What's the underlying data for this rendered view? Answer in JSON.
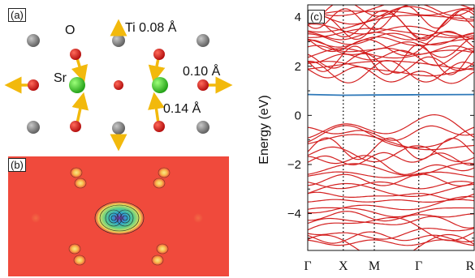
{
  "panel_a": {
    "label": "(a)",
    "atom_labels": {
      "o": "O",
      "sr": "Sr"
    },
    "displacements": {
      "ti": "Ti 0.08 Å",
      "o_horizontal": "0.10 Å",
      "o_vertical": "0.14 Å"
    },
    "colors": {
      "sr": "#33cc1a",
      "o": "#dd1111",
      "ti": "#8a8a8a",
      "arrow": "#f2b90c"
    }
  },
  "panel_b": {
    "label": "(b)",
    "colors": {
      "background": "#f04a3c",
      "lobe": "#f6ce52",
      "center": "#3fb0a6"
    }
  },
  "panel_c": {
    "label": "(c)",
    "ylabel": "Energy (eV)",
    "yticks": [
      "4",
      "2",
      "0",
      "−2",
      "−4"
    ],
    "kpoints": [
      "Γ",
      "X",
      "M",
      "Γ",
      "R"
    ],
    "colors": {
      "bands": "#d42020",
      "defect_band": "#2f79b9"
    }
  },
  "chart_data": {
    "type": "line",
    "ylabel": "Energy (eV)",
    "ylim": [
      -5.5,
      4.5
    ],
    "x": [
      "Γ",
      "X",
      "M",
      "Γ",
      "R"
    ],
    "kpath_positions": [
      0,
      0.32,
      0.6,
      1.0,
      1.5
    ],
    "series": [
      {
        "values": [
          0.85,
          0.82,
          0.83,
          0.84,
          0.85
        ]
      }
    ],
    "band_regions": [
      {
        "range": [
          -5.5,
          -0.4
        ]
      },
      {
        "range": [
          1.6,
          4.5
        ]
      }
    ]
  }
}
